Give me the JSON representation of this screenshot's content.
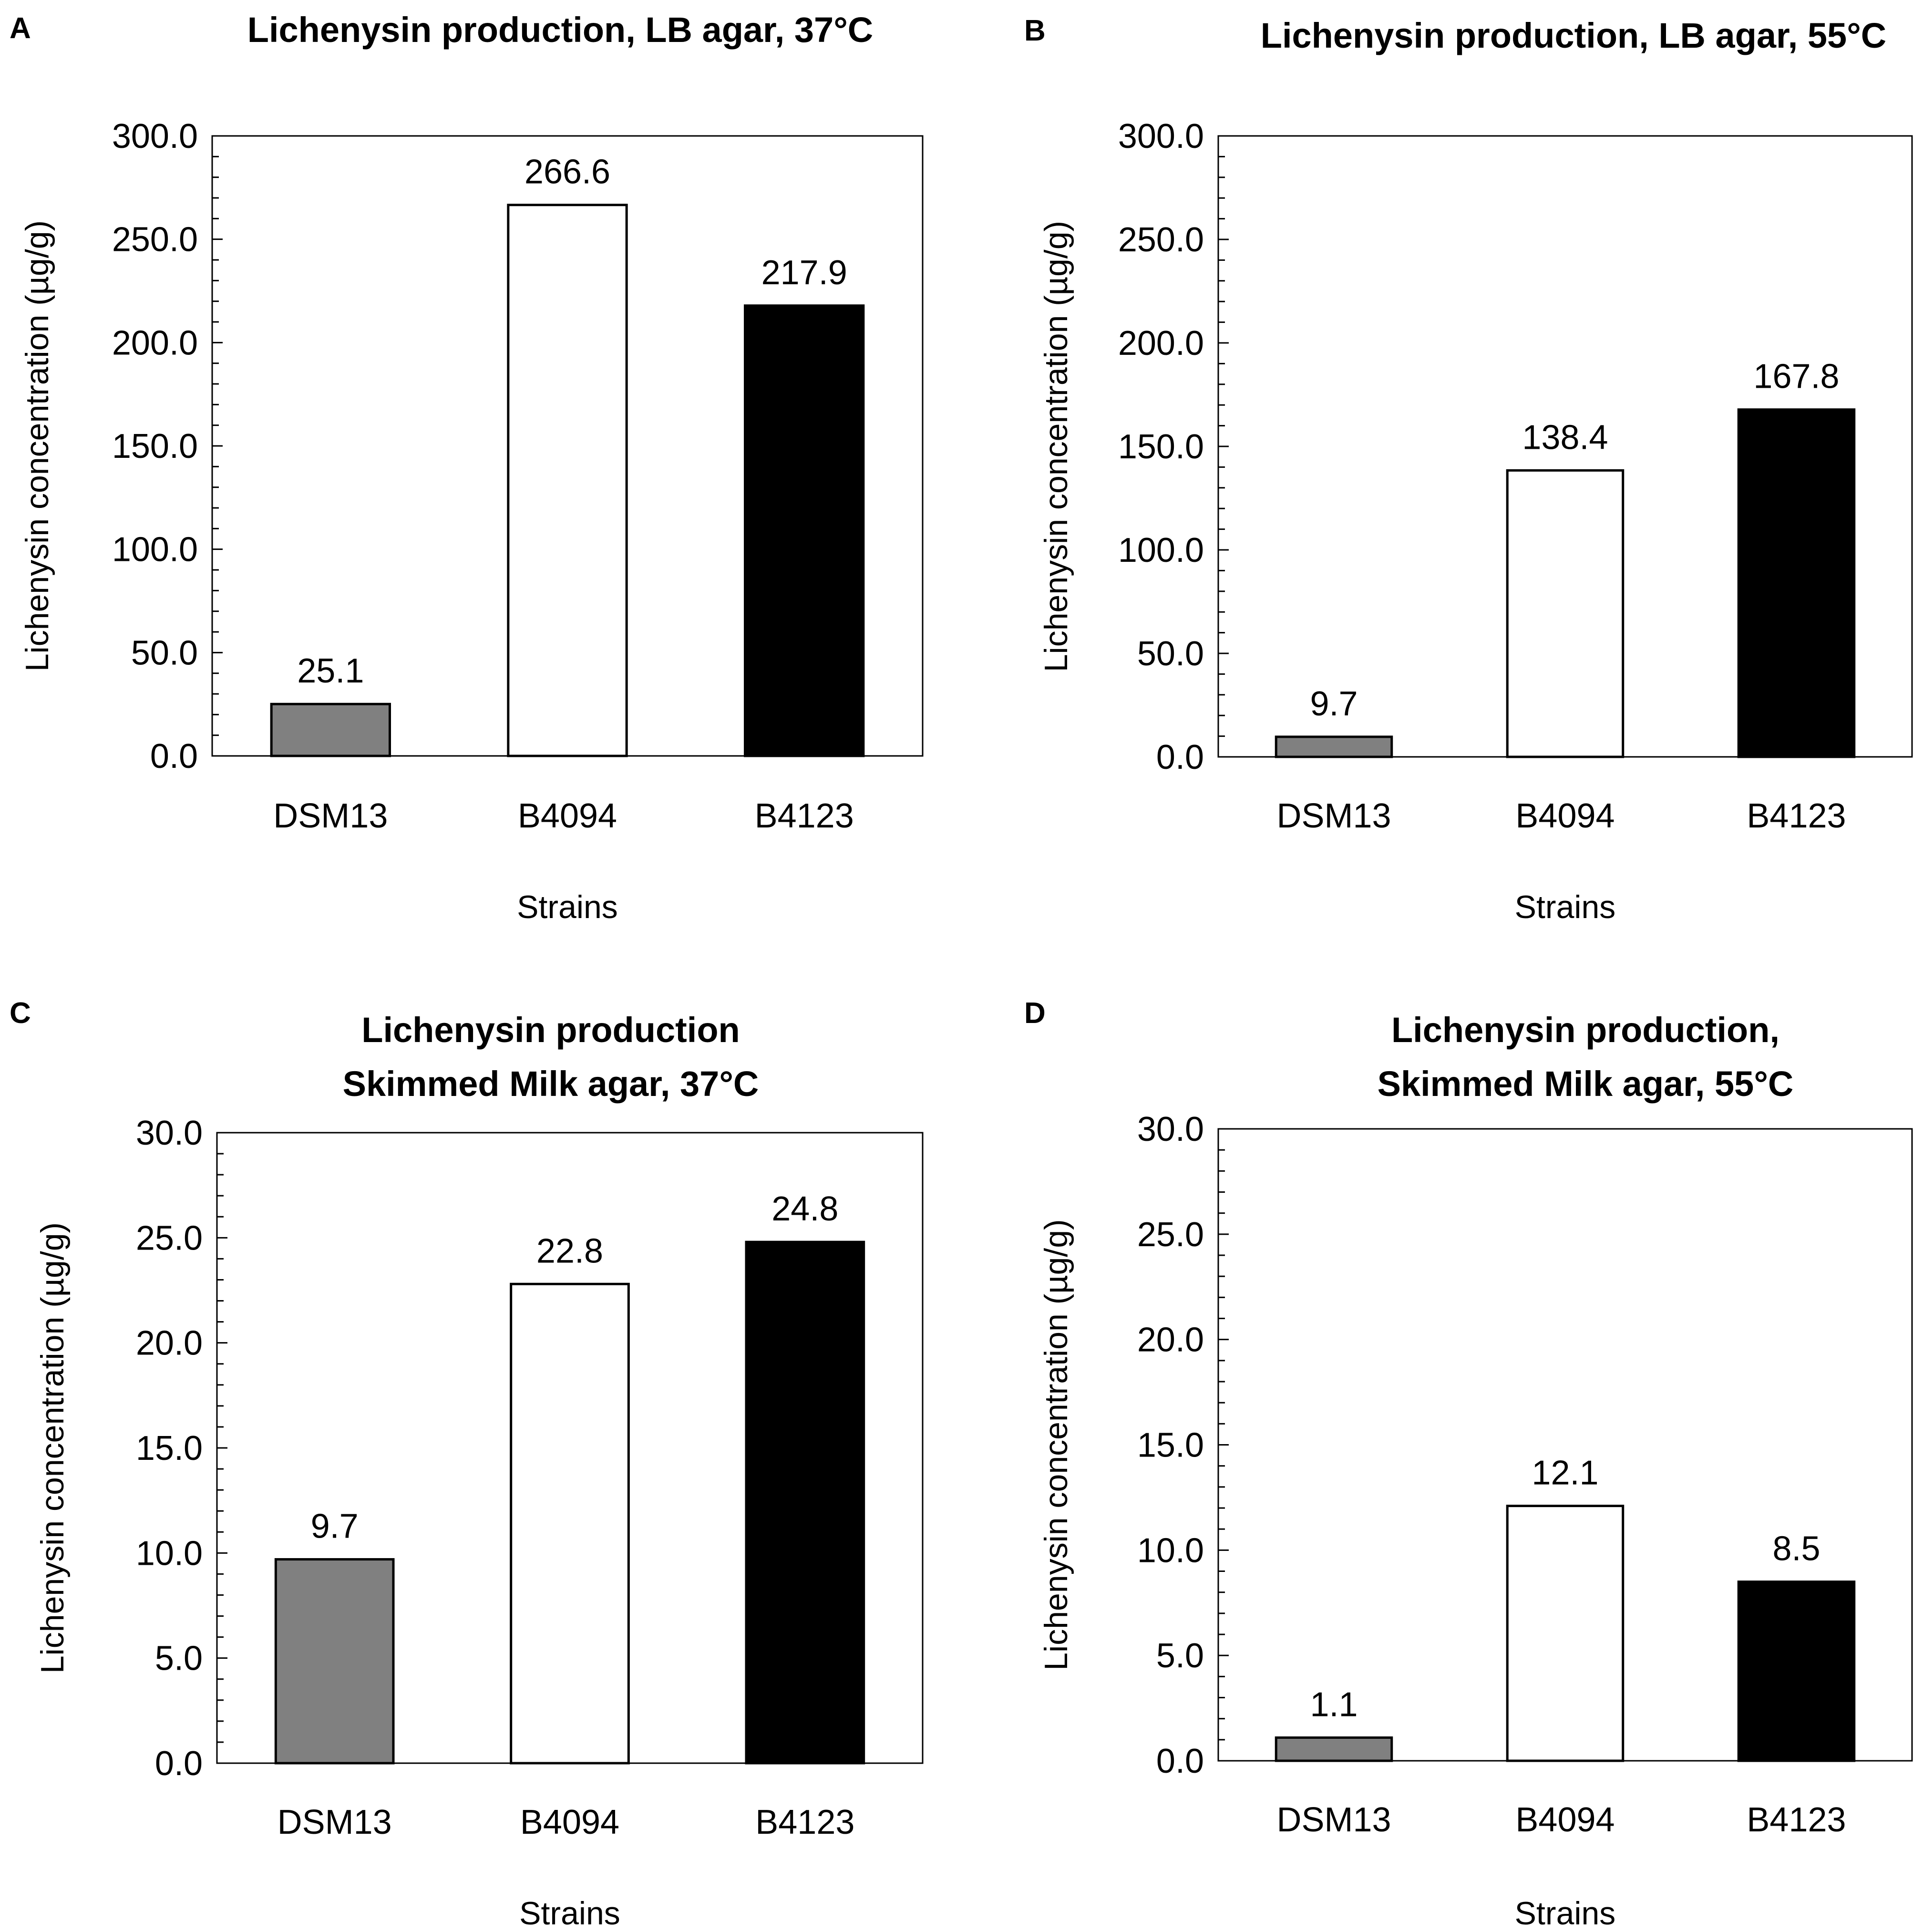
{
  "chart_data": [
    {
      "type": "bar",
      "panel": "A",
      "title_lines": [
        "Lichenysin production, LB agar, 37°C"
      ],
      "categories": [
        "DSM13",
        "B4094",
        "B4123"
      ],
      "values": [
        25.1,
        266.6,
        217.9
      ],
      "value_labels": [
        "25.1",
        "266.6",
        "217.9"
      ],
      "bar_colors": [
        "#808080",
        "#ffffff",
        "#000000"
      ],
      "ylim": [
        0,
        300
      ],
      "yticks": [
        "0.0",
        "50.0",
        "100.0",
        "150.0",
        "200.0",
        "250.0",
        "300.0"
      ],
      "xlabel": "Strains",
      "ylabel": "Lichenysin concentration (µg/g)"
    },
    {
      "type": "bar",
      "panel": "B",
      "title_lines": [
        "Lichenysin production, LB agar, 55°C"
      ],
      "categories": [
        "DSM13",
        "B4094",
        "B4123"
      ],
      "values": [
        9.7,
        138.4,
        167.8
      ],
      "value_labels": [
        "9.7",
        "138.4",
        "167.8"
      ],
      "bar_colors": [
        "#808080",
        "#ffffff",
        "#000000"
      ],
      "ylim": [
        0,
        300
      ],
      "yticks": [
        "0.0",
        "50.0",
        "100.0",
        "150.0",
        "200.0",
        "250.0",
        "300.0"
      ],
      "xlabel": "Strains",
      "ylabel": "Lichenysin concentration (µg/g)"
    },
    {
      "type": "bar",
      "panel": "C",
      "title_lines": [
        "Lichenysin production",
        "Skimmed Milk agar, 37°C"
      ],
      "categories": [
        "DSM13",
        "B4094",
        "B4123"
      ],
      "values": [
        9.7,
        22.8,
        24.8
      ],
      "value_labels": [
        "9.7",
        "22.8",
        "24.8"
      ],
      "bar_colors": [
        "#808080",
        "#ffffff",
        "#000000"
      ],
      "ylim": [
        0,
        30
      ],
      "yticks": [
        "0.0",
        "5.0",
        "10.0",
        "15.0",
        "20.0",
        "25.0",
        "30.0"
      ],
      "xlabel": "Strains",
      "ylabel": "Lichenysin concentration (µg/g)"
    },
    {
      "type": "bar",
      "panel": "D",
      "title_lines": [
        "Lichenysin production,",
        "Skimmed Milk agar, 55°C"
      ],
      "categories": [
        "DSM13",
        "B4094",
        "B4123"
      ],
      "values": [
        1.1,
        12.1,
        8.5
      ],
      "value_labels": [
        "1.1",
        "12.1",
        "8.5"
      ],
      "bar_colors": [
        "#808080",
        "#ffffff",
        "#000000"
      ],
      "ylim": [
        0,
        30
      ],
      "yticks": [
        "0.0",
        "5.0",
        "10.0",
        "15.0",
        "20.0",
        "25.0",
        "30.0"
      ],
      "xlabel": "Strains",
      "ylabel": "Lichenysin concentration (µg/g)"
    }
  ]
}
